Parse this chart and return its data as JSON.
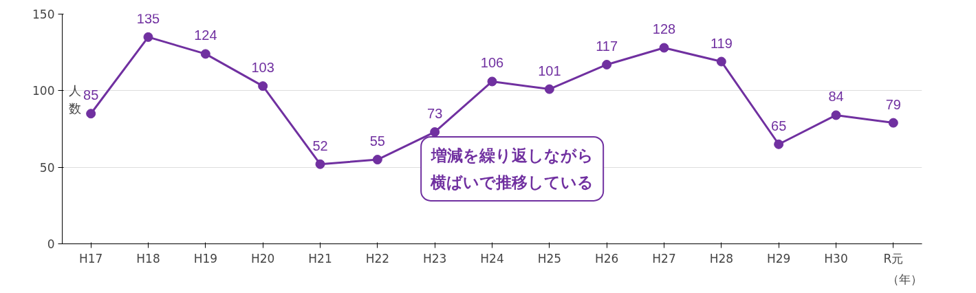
{
  "chart_data": {
    "type": "line",
    "xlabel": "（年）",
    "ylabel": "人数",
    "categories": [
      "H17",
      "H18",
      "H19",
      "H20",
      "H21",
      "H22",
      "H23",
      "H24",
      "H25",
      "H26",
      "H27",
      "H28",
      "H29",
      "H30",
      "R元"
    ],
    "series": [
      {
        "color": "#7030a0",
        "values": [
          85,
          135,
          124,
          103,
          52,
          55,
          73,
          106,
          101,
          117,
          128,
          119,
          65,
          84,
          79
        ]
      }
    ],
    "ylim": [
      0,
      150
    ],
    "yticks": [
      0,
      50,
      100,
      150
    ],
    "grid": "y",
    "marker": "circle",
    "line_style": "solid",
    "data_labels": true,
    "annotations": [
      "増減を繰り返しながら横ばいで推移している"
    ]
  }
}
